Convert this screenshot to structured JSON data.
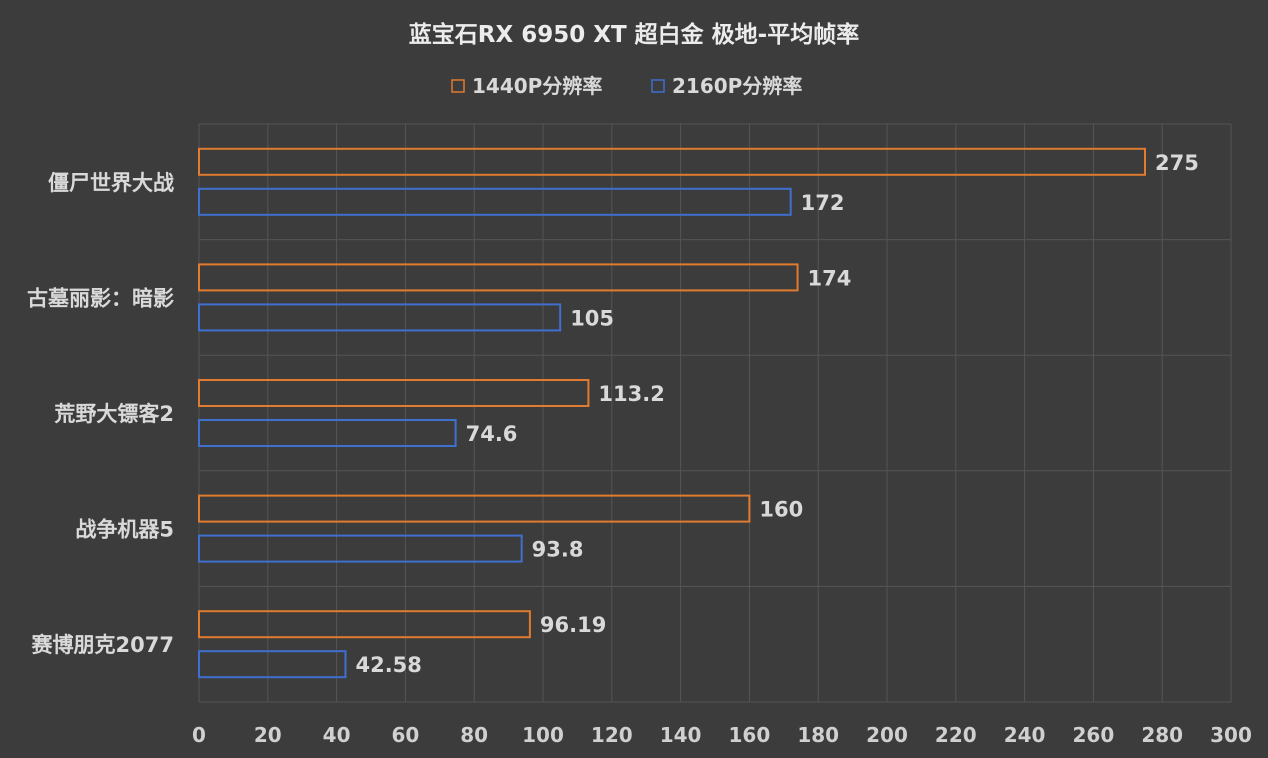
{
  "chart_data": {
    "type": "bar",
    "orientation": "horizontal",
    "title": "蓝宝石RX 6950 XT 超白金 极地-平均帧率",
    "categories": [
      "僵尸世界大战",
      "古墓丽影：暗影",
      "荒野大镖客2",
      "战争机器5",
      "赛博朋克2077"
    ],
    "series": [
      {
        "name": "1440P分辨率",
        "color": "#e07b30",
        "values": [
          275,
          174,
          113.2,
          160,
          96.19
        ],
        "labels": [
          "275",
          "174",
          "113.2",
          "160",
          "96.19"
        ]
      },
      {
        "name": "2160P分辨率",
        "color": "#3f6fcf",
        "values": [
          172,
          105,
          74.6,
          93.8,
          42.58
        ],
        "labels": [
          "172",
          "105",
          "74.6",
          "93.8",
          "42.58"
        ]
      }
    ],
    "xlim": [
      0,
      300
    ],
    "xticks": [
      "0",
      "20",
      "40",
      "60",
      "80",
      "100",
      "120",
      "140",
      "160",
      "180",
      "200",
      "220",
      "240",
      "260",
      "280",
      "300"
    ],
    "grid": true,
    "legend": "top",
    "bar_style": "outline"
  }
}
